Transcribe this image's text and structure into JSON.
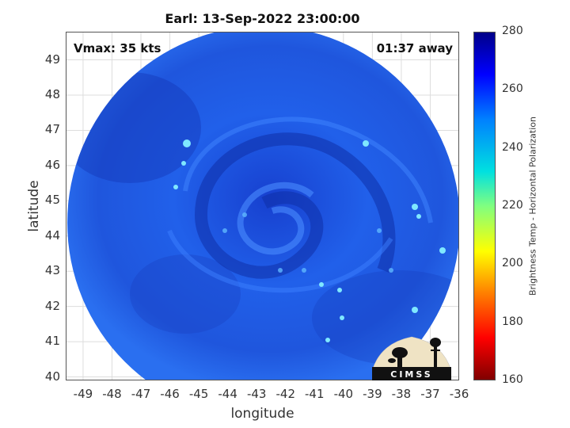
{
  "title": "Earl: 13-Sep-2022 23:00:00",
  "vmax_label": "Vmax: 35 kts",
  "away_label": "01:37 away",
  "axes": {
    "xlabel": "longitude",
    "ylabel": "latitude",
    "xlim": [
      -49.6,
      -36
    ],
    "ylim": [
      39.9,
      49.8
    ],
    "xticks": [
      "-49",
      "-48",
      "-47",
      "-46",
      "-45",
      "-44",
      "-43",
      "-42",
      "-41",
      "-40",
      "-39",
      "-38",
      "-37",
      "-36"
    ],
    "yticks": [
      "49",
      "48",
      "47",
      "46",
      "45",
      "44",
      "43",
      "42",
      "41",
      "40"
    ],
    "grid": true
  },
  "colorbar": {
    "label": "Brightness Temp - Horizontal Polarization",
    "range": [
      160,
      280
    ],
    "ticks": [
      "280",
      "260",
      "240",
      "220",
      "200",
      "180",
      "160"
    ]
  },
  "logo_text": "CIMSS",
  "colors": {
    "swath_base": "#1f5fe6",
    "swath_dark": "#1238b8",
    "swath_light": "#3a86ff",
    "bright_cells": "#7fe8ff"
  }
}
